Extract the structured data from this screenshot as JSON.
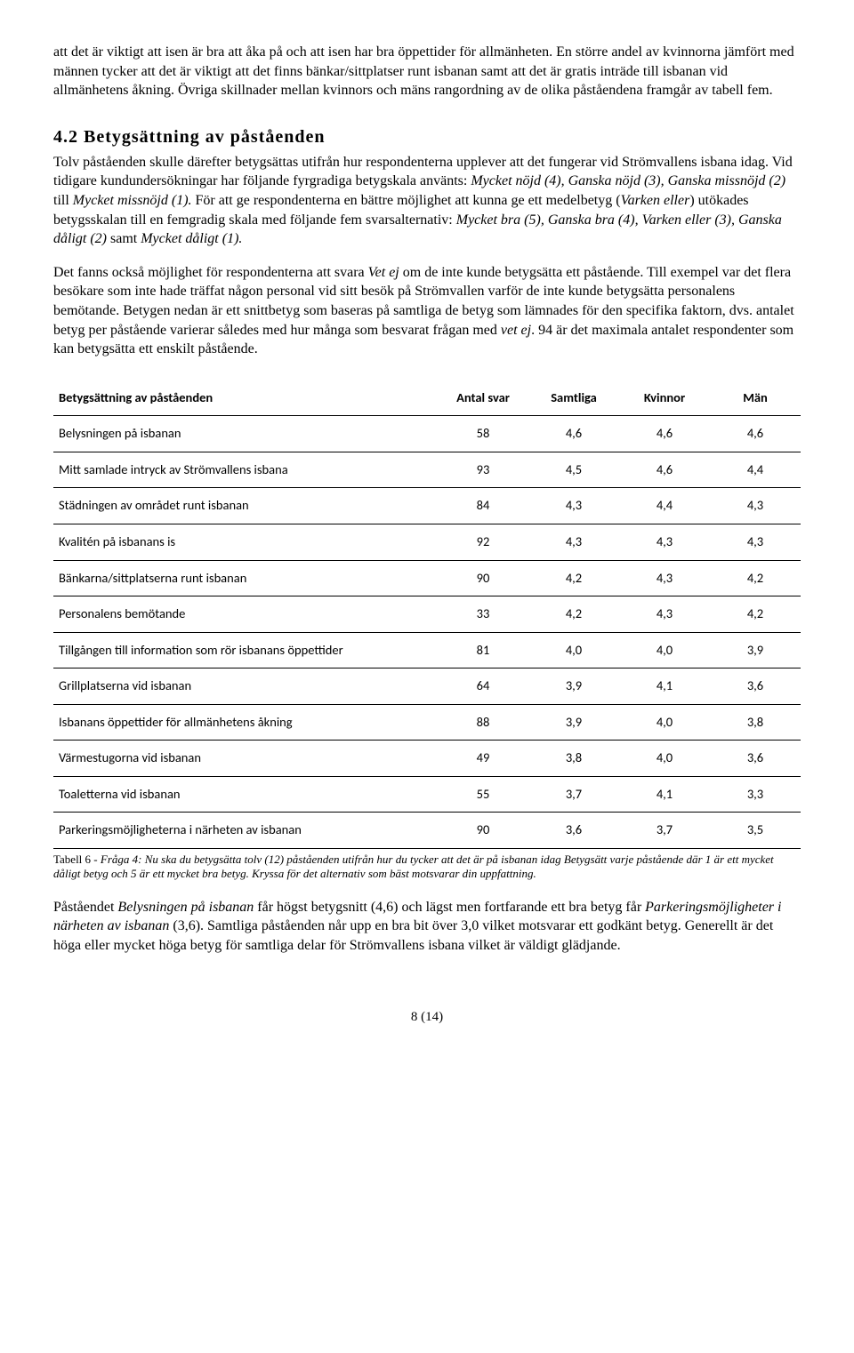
{
  "para1": "att det är viktigt att isen är bra att åka på och att isen har bra öppettider för allmänheten. En större andel av kvinnorna jämfört med männen tycker att det är viktigt att det finns bänkar/sittplatser runt isbanan samt att det är gratis inträde till isbanan vid allmänhetens åkning. Övriga skillnader mellan kvinnors och mäns rangordning av de olika påståendena framgår av tabell fem.",
  "heading": "4.2 Betygsättning av påståenden",
  "para2_a": "Tolv påståenden skulle därefter betygsättas utifrån hur respondenterna upplever att det fungerar vid Strömvallens isbana idag. Vid tidigare kundundersökningar har följande fyrgradiga betygskala använts: ",
  "para2_b": "Mycket nöjd (4), Ganska nöjd (3), Ganska missnöjd (2) ",
  "para2_c": "till ",
  "para2_d": "Mycket missnöjd (1). ",
  "para2_e": "För att ge respondenterna en bättre möjlighet att kunna ge ett medelbetyg (",
  "para2_f": "Varken eller",
  "para2_g": ") utökades betygsskalan till en femgradig skala med följande fem svarsalternativ: ",
  "para2_h": "Mycket bra (5), Ganska bra (4), Varken eller (3), Ganska dåligt (2) ",
  "para2_i": "samt ",
  "para2_j": "Mycket dåligt (1).",
  "para3_a": "Det fanns också möjlighet för respondenterna att svara ",
  "para3_b": "Vet ej ",
  "para3_c": "om de inte kunde betygsätta ett påstående. Till exempel var det flera besökare som inte hade träffat någon personal vid sitt besök på Strömvallen varför de inte kunde betygsätta personalens bemötande. Betygen nedan är ett snittbetyg som baseras på samtliga de betyg som lämnades för den specifika faktorn, dvs. antalet betyg per påstående varierar således med hur många som besvarat frågan med ",
  "para3_d": "vet ej",
  "para3_e": ". 94 är det maximala antalet respondenter som kan betygsätta ett enskilt påstående.",
  "table": {
    "headers": [
      "Betygsättning av påståenden",
      "Antal svar",
      "Samtliga",
      "Kvinnor",
      "Män"
    ],
    "rows": [
      [
        "Belysningen på isbanan",
        "58",
        "4,6",
        "4,6",
        "4,6"
      ],
      [
        "Mitt samlade intryck av Strömvallens isbana",
        "93",
        "4,5",
        "4,6",
        "4,4"
      ],
      [
        "Städningen av området runt isbanan",
        "84",
        "4,3",
        "4,4",
        "4,3"
      ],
      [
        "Kvalitén på isbanans is",
        "92",
        "4,3",
        "4,3",
        "4,3"
      ],
      [
        "Bänkarna/sittplatserna runt isbanan",
        "90",
        "4,2",
        "4,3",
        "4,2"
      ],
      [
        "Personalens bemötande",
        "33",
        "4,2",
        "4,3",
        "4,2"
      ],
      [
        "Tillgången till information som rör isbanans öppettider",
        "81",
        "4,0",
        "4,0",
        "3,9"
      ],
      [
        "Grillplatserna vid isbanan",
        "64",
        "3,9",
        "4,1",
        "3,6"
      ],
      [
        "Isbanans öppettider för allmänhetens åkning",
        "88",
        "3,9",
        "4,0",
        "3,8"
      ],
      [
        "Värmestugorna vid isbanan",
        "49",
        "3,8",
        "4,0",
        "3,6"
      ],
      [
        "Toaletterna vid isbanan",
        "55",
        "3,7",
        "4,1",
        "3,3"
      ],
      [
        "Parkeringsmöjligheterna i närheten av isbanan",
        "90",
        "3,6",
        "3,7",
        "3,5"
      ]
    ]
  },
  "caption_a": "Tabell 6 - ",
  "caption_b": "Fråga 4: Nu ska du betygsätta tolv (12) påståenden utifrån hur du tycker att det är på isbanan idag Betygsätt varje påstående där 1 är ett mycket dåligt betyg och 5 är ett mycket bra betyg. Kryssa för det alternativ som bäst motsvarar din uppfattning.",
  "para4_a": "Påståendet ",
  "para4_b": "Belysningen på isbanan ",
  "para4_c": "får högst betygsnitt (4,6) och lägst men fortfarande ett bra betyg får ",
  "para4_d": "Parkeringsmöjligheter i närheten av isbanan ",
  "para4_e": "(3,6). Samtliga påståenden når upp en bra bit över 3,0 vilket motsvarar ett godkänt betyg. Generellt är det höga eller mycket höga betyg för samtliga delar för Strömvallens isbana vilket är väldigt glädjande.",
  "page_num": "8 (14)"
}
